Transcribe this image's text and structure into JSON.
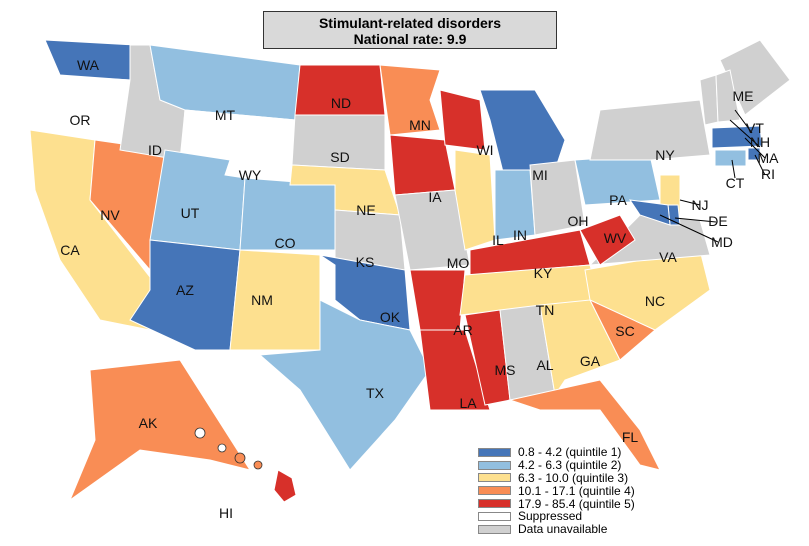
{
  "title": {
    "line1": "Stimulant-related disorders",
    "line2": "National rate: 9.9"
  },
  "colors": {
    "q1": "#4575b8",
    "q2": "#92bfe0",
    "q3": "#fde08f",
    "q4": "#f98d55",
    "q5": "#d7302a",
    "suppressed": "#ffffff",
    "unavailable": "#d0d0d0"
  },
  "legend": [
    {
      "key": "q1",
      "label": "0.8 - 4.2 (quintile 1)"
    },
    {
      "key": "q2",
      "label": "4.2 - 6.3 (quintile 2)"
    },
    {
      "key": "q3",
      "label": "6.3 - 10.0 (quintile 3)"
    },
    {
      "key": "q4",
      "label": "10.1 - 17.1 (quintile 4)"
    },
    {
      "key": "q5",
      "label": "17.9 - 85.4 (quintile 5)"
    },
    {
      "key": "suppressed",
      "label": "Suppressed"
    },
    {
      "key": "unavailable",
      "label": "Data unavailable"
    }
  ],
  "states": [
    {
      "abbr": "WA",
      "fill": "q1"
    },
    {
      "abbr": "OR",
      "fill": "suppressed"
    },
    {
      "abbr": "CA",
      "fill": "q3"
    },
    {
      "abbr": "NV",
      "fill": "q4"
    },
    {
      "abbr": "ID",
      "fill": "unavailable"
    },
    {
      "abbr": "MT",
      "fill": "q2"
    },
    {
      "abbr": "WY",
      "fill": "suppressed"
    },
    {
      "abbr": "UT",
      "fill": "q2"
    },
    {
      "abbr": "AZ",
      "fill": "q1"
    },
    {
      "abbr": "CO",
      "fill": "q2"
    },
    {
      "abbr": "NM",
      "fill": "q3"
    },
    {
      "abbr": "ND",
      "fill": "q5"
    },
    {
      "abbr": "SD",
      "fill": "unavailable"
    },
    {
      "abbr": "NE",
      "fill": "q3"
    },
    {
      "abbr": "KS",
      "fill": "unavailable"
    },
    {
      "abbr": "OK",
      "fill": "q1"
    },
    {
      "abbr": "TX",
      "fill": "q2"
    },
    {
      "abbr": "MN",
      "fill": "q4"
    },
    {
      "abbr": "IA",
      "fill": "q5"
    },
    {
      "abbr": "MO",
      "fill": "unavailable"
    },
    {
      "abbr": "AR",
      "fill": "q5"
    },
    {
      "abbr": "LA",
      "fill": "q5"
    },
    {
      "abbr": "WI",
      "fill": "q5"
    },
    {
      "abbr": "IL",
      "fill": "q3"
    },
    {
      "abbr": "MI",
      "fill": "q1"
    },
    {
      "abbr": "IN",
      "fill": "q2"
    },
    {
      "abbr": "OH",
      "fill": "unavailable"
    },
    {
      "abbr": "KY",
      "fill": "q5"
    },
    {
      "abbr": "TN",
      "fill": "q3"
    },
    {
      "abbr": "MS",
      "fill": "q5"
    },
    {
      "abbr": "AL",
      "fill": "unavailable"
    },
    {
      "abbr": "GA",
      "fill": "q3"
    },
    {
      "abbr": "FL",
      "fill": "q4"
    },
    {
      "abbr": "SC",
      "fill": "q4"
    },
    {
      "abbr": "NC",
      "fill": "q3"
    },
    {
      "abbr": "VA",
      "fill": "unavailable"
    },
    {
      "abbr": "WV",
      "fill": "q5"
    },
    {
      "abbr": "PA",
      "fill": "q2"
    },
    {
      "abbr": "NY",
      "fill": "unavailable"
    },
    {
      "abbr": "ME",
      "fill": "unavailable"
    },
    {
      "abbr": "VT",
      "fill": "unavailable"
    },
    {
      "abbr": "NH",
      "fill": "unavailable"
    },
    {
      "abbr": "MA",
      "fill": "q1"
    },
    {
      "abbr": "RI",
      "fill": "q1"
    },
    {
      "abbr": "CT",
      "fill": "q2"
    },
    {
      "abbr": "NJ",
      "fill": "q3"
    },
    {
      "abbr": "DE",
      "fill": "q1"
    },
    {
      "abbr": "MD",
      "fill": "q1"
    },
    {
      "abbr": "AK",
      "fill": "q4"
    },
    {
      "abbr": "HI",
      "fill": "q5"
    }
  ]
}
